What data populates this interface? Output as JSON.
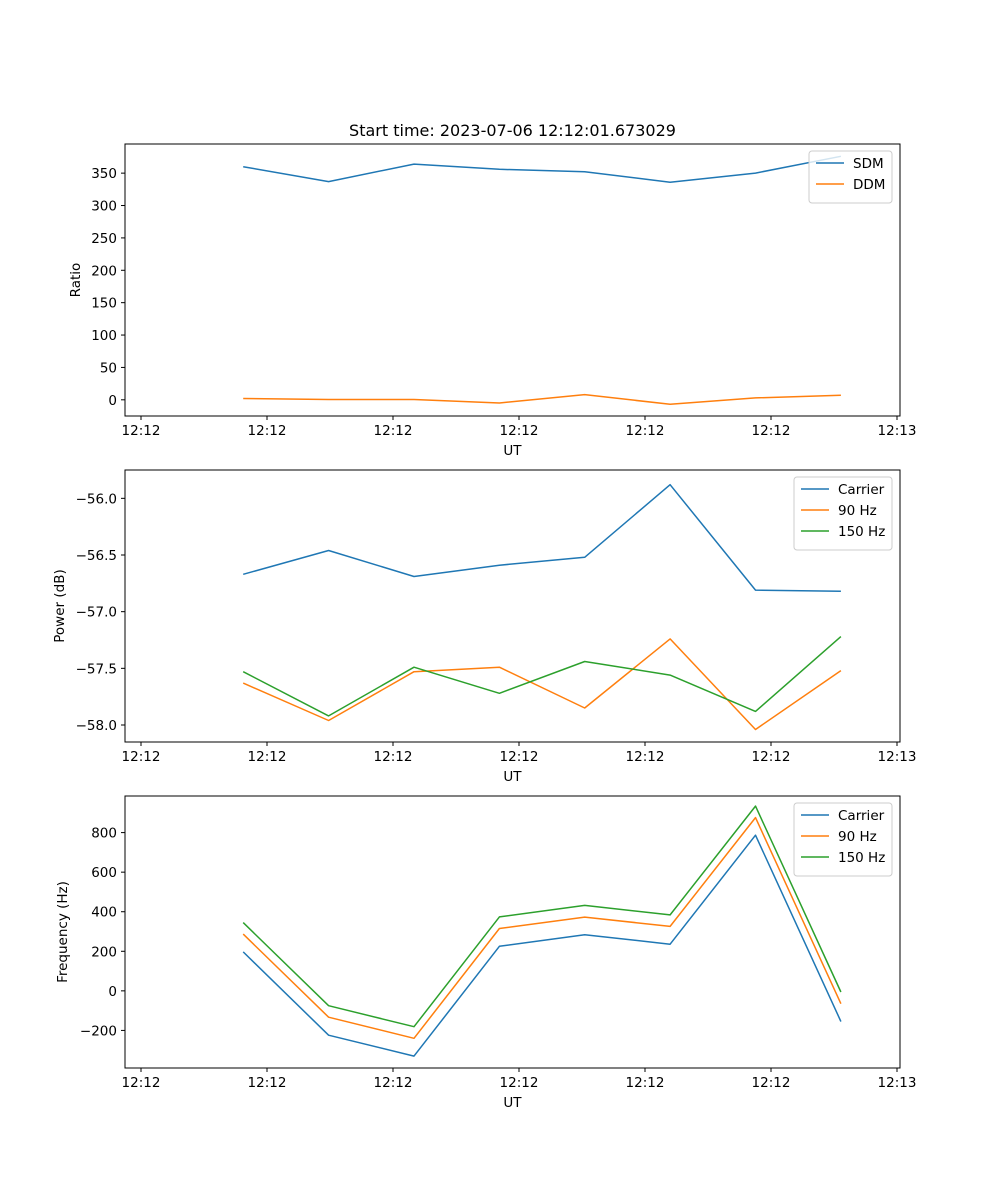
{
  "chart_data": [
    {
      "type": "line",
      "title": "Start time: 2023-07-06 12:12:01.673029",
      "xlabel": "UT",
      "ylabel": "Ratio",
      "x_ticks": [
        "12:12",
        "12:12",
        "12:12",
        "12:12",
        "12:12",
        "12:12",
        "12:13"
      ],
      "x": [
        0.9,
        1.55,
        2.2,
        2.85,
        3.5,
        4.15,
        4.8,
        5.45
      ],
      "xlim": [
        0,
        5.9
      ],
      "ylim": [
        -25,
        395
      ],
      "y_ticks": [
        0,
        50,
        100,
        150,
        200,
        250,
        300,
        350
      ],
      "legend": "top-right",
      "series": [
        {
          "name": "SDM",
          "color": "#1f77b4",
          "values": [
            360,
            337,
            364,
            356,
            352,
            336,
            350,
            376
          ]
        },
        {
          "name": "DDM",
          "color": "#ff7f0e",
          "values": [
            2,
            0.5,
            0.5,
            -5,
            8,
            -7,
            3,
            7
          ]
        }
      ]
    },
    {
      "type": "line",
      "title": "",
      "xlabel": "UT",
      "ylabel": "Power (dB)",
      "x_ticks": [
        "12:12",
        "12:12",
        "12:12",
        "12:12",
        "12:12",
        "12:12",
        "12:13"
      ],
      "x": [
        0.9,
        1.55,
        2.2,
        2.85,
        3.5,
        4.15,
        4.8,
        5.45
      ],
      "xlim": [
        0,
        5.9
      ],
      "ylim": [
        -58.15,
        -55.75
      ],
      "y_ticks": [
        -58.0,
        -57.5,
        -57.0,
        -56.5,
        -56.0
      ],
      "y_tick_labels": [
        "−58.0",
        "−57.5",
        "−57.0",
        "−56.5",
        "−56.0"
      ],
      "legend": "top-right",
      "series": [
        {
          "name": "Carrier",
          "color": "#1f77b4",
          "values": [
            -56.67,
            -56.46,
            -56.69,
            -56.59,
            -56.52,
            -55.88,
            -56.81,
            -56.82
          ]
        },
        {
          "name": "90 Hz",
          "color": "#ff7f0e",
          "values": [
            -57.63,
            -57.96,
            -57.53,
            -57.49,
            -57.85,
            -57.24,
            -58.04,
            -57.52
          ]
        },
        {
          "name": "150 Hz",
          "color": "#2ca02c",
          "values": [
            -57.53,
            -57.92,
            -57.49,
            -57.72,
            -57.44,
            -57.56,
            -57.88,
            -57.22
          ]
        }
      ]
    },
    {
      "type": "line",
      "title": "",
      "xlabel": "UT",
      "ylabel": "Frequency (Hz)",
      "x_ticks": [
        "12:12",
        "12:12",
        "12:12",
        "12:12",
        "12:12",
        "12:12",
        "12:13"
      ],
      "x": [
        0.9,
        1.55,
        2.2,
        2.85,
        3.5,
        4.15,
        4.8,
        5.45
      ],
      "xlim": [
        0,
        5.9
      ],
      "ylim": [
        -390,
        985
      ],
      "y_ticks": [
        -200,
        0,
        200,
        400,
        600,
        800
      ],
      "y_tick_labels": [
        "−200",
        "0",
        "200",
        "400",
        "600",
        "800"
      ],
      "legend": "top-right",
      "series": [
        {
          "name": "Carrier",
          "color": "#1f77b4",
          "values": [
            197,
            -224,
            -330,
            225,
            284,
            236,
            787,
            -155
          ]
        },
        {
          "name": "90 Hz",
          "color": "#ff7f0e",
          "values": [
            287,
            -133,
            -240,
            315,
            373,
            326,
            876,
            -65
          ]
        },
        {
          "name": "150 Hz",
          "color": "#2ca02c",
          "values": [
            345,
            -75,
            -181,
            374,
            432,
            384,
            934,
            -6
          ]
        }
      ]
    }
  ]
}
